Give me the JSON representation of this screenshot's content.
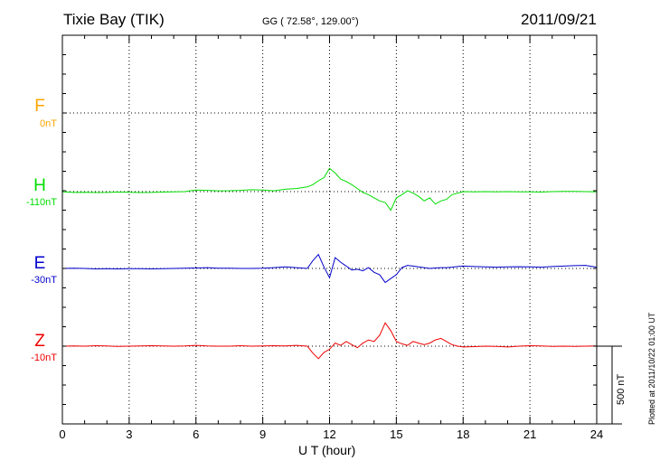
{
  "header": {
    "station": "Tixie Bay (TIK)",
    "coords": "GG ( 72.58°, 129.00°)",
    "date": "2011/09/21"
  },
  "footer": {
    "plotted": "Plotted at 2011/10/22 01:00 UT"
  },
  "scale_bar": {
    "label": "500 nT",
    "value_nT": 500
  },
  "colors": {
    "F": "#ffa500",
    "H": "#00dd00",
    "E": "#0000cc",
    "Z": "#ee0000"
  },
  "components": [
    {
      "letter": "F",
      "baseline": "0nT"
    },
    {
      "letter": "H",
      "baseline": "-110nT"
    },
    {
      "letter": "E",
      "baseline": "-30nT"
    },
    {
      "letter": "Z",
      "baseline": "-10nT"
    }
  ],
  "chart_data": {
    "type": "line",
    "xlabel": "U T (hour)",
    "xlim": [
      0,
      24
    ],
    "x_ticks": [
      "0",
      "3",
      "6",
      "9",
      "12",
      "15",
      "18",
      "21",
      "24"
    ],
    "grid": true,
    "units": "nT",
    "x": [
      0,
      0.5,
      1,
      1.5,
      2,
      2.5,
      3,
      3.5,
      4,
      4.5,
      5,
      5.5,
      6,
      6.5,
      7,
      7.5,
      8,
      8.5,
      9,
      9.5,
      10,
      10.5,
      11,
      11.25,
      11.5,
      11.75,
      12,
      12.25,
      12.5,
      12.75,
      13,
      13.25,
      13.5,
      13.75,
      14,
      14.25,
      14.5,
      14.75,
      15,
      15.25,
      15.5,
      15.75,
      16,
      16.25,
      16.5,
      16.75,
      17,
      17.25,
      17.5,
      17.75,
      18,
      18.5,
      19,
      19.5,
      20,
      20.5,
      21,
      21.5,
      22,
      22.5,
      23,
      23.5,
      24
    ],
    "series": [
      {
        "name": "H",
        "values": [
          -2,
          -5,
          -4,
          -6,
          -5,
          -3,
          -4,
          -6,
          -5,
          -3,
          -2,
          0,
          10,
          8,
          5,
          6,
          8,
          12,
          10,
          5,
          15,
          20,
          30,
          45,
          70,
          90,
          150,
          120,
          80,
          65,
          45,
          20,
          -5,
          -20,
          -40,
          -60,
          -70,
          -120,
          -40,
          -20,
          5,
          -10,
          -30,
          -60,
          -40,
          -80,
          -60,
          -50,
          -20,
          -10,
          0,
          -2,
          0,
          -1,
          0,
          -2,
          -1,
          -3,
          0,
          2,
          1,
          0,
          -1
        ]
      },
      {
        "name": "E",
        "values": [
          0,
          2,
          0,
          -3,
          -2,
          -3,
          -2,
          -1,
          -3,
          -2,
          0,
          1,
          3,
          5,
          2,
          1,
          0,
          0,
          2,
          5,
          10,
          5,
          0,
          50,
          90,
          10,
          -60,
          70,
          40,
          15,
          -10,
          -5,
          -15,
          5,
          -25,
          -40,
          -90,
          -65,
          -40,
          5,
          20,
          15,
          10,
          5,
          0,
          3,
          5,
          5,
          8,
          12,
          15,
          12,
          10,
          8,
          10,
          11,
          10,
          8,
          12,
          15,
          18,
          20,
          8
        ]
      },
      {
        "name": "Z",
        "values": [
          0,
          2,
          0,
          3,
          1,
          -2,
          0,
          2,
          3,
          1,
          0,
          2,
          5,
          2,
          0,
          0,
          3,
          0,
          2,
          3,
          2,
          5,
          0,
          -45,
          -80,
          -40,
          -20,
          20,
          5,
          30,
          10,
          -10,
          20,
          40,
          30,
          70,
          150,
          100,
          30,
          15,
          5,
          30,
          20,
          10,
          20,
          40,
          50,
          30,
          10,
          0,
          -5,
          -3,
          0,
          -2,
          -5,
          0,
          3,
          2,
          -2,
          0,
          -1,
          0,
          2
        ]
      }
    ]
  }
}
